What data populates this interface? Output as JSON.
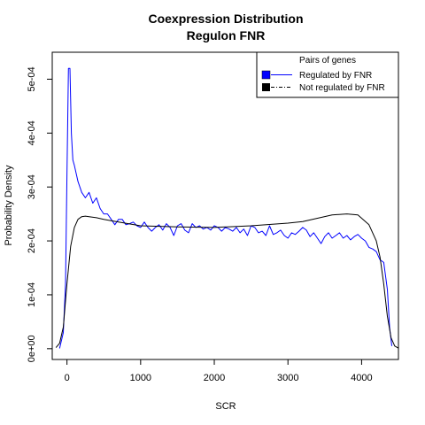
{
  "chart_data": {
    "type": "line",
    "title": "Coexpression Distribution",
    "subtitle": "Regulon FNR",
    "xlabel": "SCR",
    "ylabel": "Probability Density",
    "xlim": [
      -200,
      4500
    ],
    "ylim": [
      -2e-05,
      0.00055
    ],
    "x_ticks": [
      0,
      1000,
      2000,
      3000,
      4000
    ],
    "x_tick_labels": [
      "0",
      "1000",
      "2000",
      "3000",
      "4000"
    ],
    "y_ticks": [
      0,
      0.0001,
      0.0002,
      0.0003,
      0.0004,
      0.0005
    ],
    "y_tick_labels": [
      "0e+00",
      "1e-04",
      "2e-04",
      "3e-04",
      "4e-04",
      "5e-04"
    ],
    "grid": false,
    "legend": {
      "title": "Pairs of genes",
      "position": "top-right",
      "entries": [
        "Regulated by  FNR",
        "Not regulated by  FNR"
      ]
    },
    "series": [
      {
        "name": "Regulated by  FNR",
        "color": "#0000ff",
        "x": [
          -100,
          -50,
          -20,
          0,
          20,
          40,
          60,
          80,
          100,
          150,
          200,
          250,
          300,
          350,
          400,
          450,
          500,
          550,
          600,
          650,
          700,
          750,
          800,
          850,
          900,
          950,
          1000,
          1050,
          1100,
          1150,
          1200,
          1250,
          1300,
          1350,
          1400,
          1450,
          1500,
          1550,
          1600,
          1650,
          1700,
          1750,
          1800,
          1850,
          1900,
          1950,
          2000,
          2050,
          2100,
          2150,
          2200,
          2250,
          2300,
          2350,
          2400,
          2450,
          2500,
          2550,
          2600,
          2650,
          2700,
          2750,
          2800,
          2850,
          2900,
          2950,
          3000,
          3050,
          3100,
          3150,
          3200,
          3250,
          3300,
          3350,
          3400,
          3450,
          3500,
          3550,
          3600,
          3650,
          3700,
          3750,
          3800,
          3850,
          3900,
          3950,
          4000,
          4050,
          4100,
          4150,
          4200,
          4250,
          4300,
          4350,
          4380,
          4410
        ],
        "y": [
          5e-07,
          3e-05,
          0.00012,
          0.00032,
          0.00052,
          0.00052,
          0.0004,
          0.00035,
          0.00034,
          0.00031,
          0.00029,
          0.00028,
          0.00029,
          0.00027,
          0.00028,
          0.00026,
          0.00025,
          0.00025,
          0.00024,
          0.00023,
          0.00024,
          0.00024,
          0.00023,
          0.000232,
          0.000235,
          0.000228,
          0.000225,
          0.000235,
          0.000225,
          0.000218,
          0.000225,
          0.00023,
          0.00022,
          0.000232,
          0.000225,
          0.00021,
          0.000228,
          0.000232,
          0.00022,
          0.000215,
          0.000232,
          0.000225,
          0.000228,
          0.000222,
          0.000225,
          0.00022,
          0.000228,
          0.000225,
          0.000218,
          0.000225,
          0.000222,
          0.000218,
          0.000225,
          0.000215,
          0.000222,
          0.00021,
          0.000228,
          0.000225,
          0.000215,
          0.000218,
          0.00021,
          0.000228,
          0.000212,
          0.000215,
          0.00022,
          0.00021,
          0.000205,
          0.000215,
          0.000212,
          0.000218,
          0.000225,
          0.00022,
          0.000208,
          0.000215,
          0.000205,
          0.000195,
          0.000208,
          0.000215,
          0.000205,
          0.00021,
          0.000215,
          0.000205,
          0.00021,
          0.000202,
          0.000208,
          0.000212,
          0.000205,
          0.0002,
          0.000188,
          0.000185,
          0.00018,
          0.000165,
          0.00016,
          0.00011,
          4e-05,
          5e-06
        ]
      },
      {
        "name": "Not regulated by  FNR",
        "color": "#000000",
        "x": [
          -150,
          -100,
          -50,
          0,
          50,
          100,
          150,
          200,
          250,
          300,
          400,
          500,
          700,
          1000,
          1500,
          2000,
          2500,
          3000,
          3200,
          3400,
          3600,
          3800,
          3950,
          4100,
          4200,
          4250,
          4300,
          4350,
          4400,
          4450,
          4500
        ],
        "y": [
          2e-06,
          1e-05,
          4e-05,
          0.00012,
          0.00019,
          0.000225,
          0.00024,
          0.000245,
          0.000246,
          0.000245,
          0.000243,
          0.00024,
          0.000235,
          0.000228,
          0.000226,
          0.000225,
          0.000228,
          0.000233,
          0.000236,
          0.000242,
          0.000248,
          0.00025,
          0.000248,
          0.00023,
          0.0002,
          0.00017,
          0.00012,
          6e-05,
          2e-05,
          5e-06,
          1e-06
        ]
      }
    ]
  }
}
